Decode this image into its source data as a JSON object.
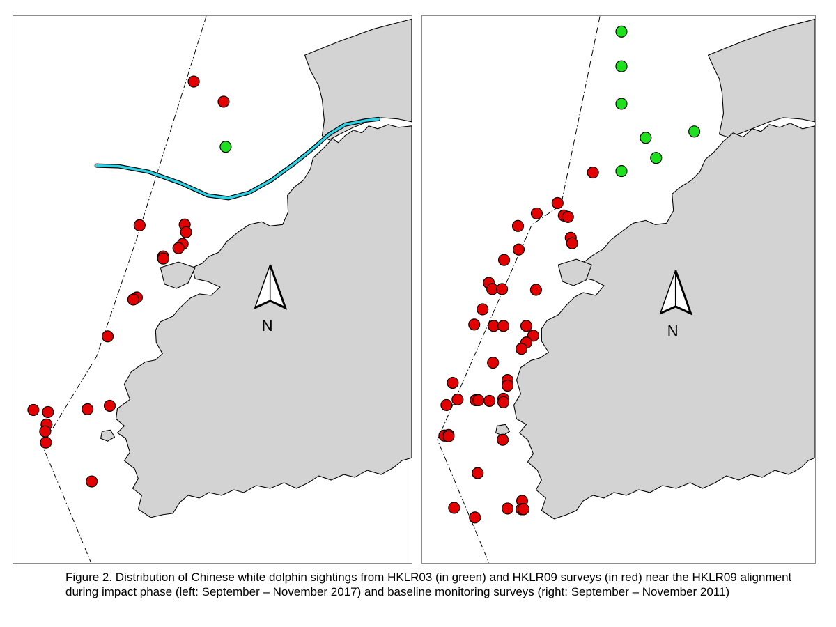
{
  "colors": {
    "hklr03": "#1fe01f",
    "hklr09": "#e30000",
    "land": "#d3d3d3",
    "alignment": "#2ad4e6"
  },
  "north_arrow": {
    "label": "N",
    "icon": "north-arrow-icon"
  },
  "caption": {
    "text": "Figure 2.  Distribution of Chinese white dolphin sightings from HKLR03 (in green) and HKLR09 surveys (in red) near the HKLR09 alignment during impact phase (left: September – November 2017) and baseline monitoring surveys (right: September – November 2011)"
  },
  "panels": [
    {
      "id": "left",
      "period": "September – November 2017",
      "phase": "impact",
      "hklr03_sightings": 1,
      "hklr09_sightings": 26
    },
    {
      "id": "right",
      "period": "September – November 2011",
      "phase": "baseline",
      "hklr03_sightings": 7,
      "hklr09_sightings": 46
    }
  ]
}
